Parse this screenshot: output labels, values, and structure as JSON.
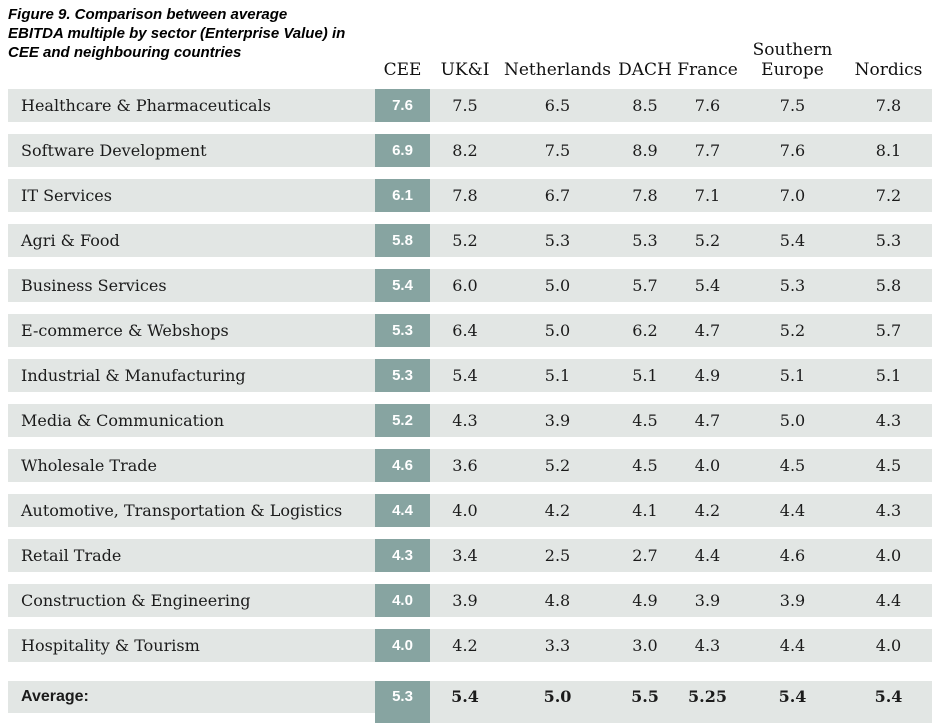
{
  "figure": {
    "caption": "Figure 9. Comparison between average EBITDA multiple by sector (Enterprise Value) in CEE and neighbouring countries"
  },
  "chart_data": {
    "type": "table",
    "title": "Comparison between average EBITDA multiple by sector (Enterprise Value) in CEE and neighbouring countries",
    "columns": [
      "CEE",
      "UK&I",
      "Netherlands",
      "DACH",
      "France",
      "Southern Europe",
      "Nordics"
    ],
    "rows": [
      {
        "sector": "Healthcare & Pharmaceuticals",
        "cee": "7.6",
        "values": [
          "7.5",
          "6.5",
          "8.5",
          "7.6",
          "7.5",
          "7.8"
        ]
      },
      {
        "sector": "Software Development",
        "cee": "6.9",
        "values": [
          "8.2",
          "7.5",
          "8.9",
          "7.7",
          "7.6",
          "8.1"
        ]
      },
      {
        "sector": "IT Services",
        "cee": "6.1",
        "values": [
          "7.8",
          "6.7",
          "7.8",
          "7.1",
          "7.0",
          "7.2"
        ]
      },
      {
        "sector": "Agri & Food",
        "cee": "5.8",
        "values": [
          "5.2",
          "5.3",
          "5.3",
          "5.2",
          "5.4",
          "5.3"
        ]
      },
      {
        "sector": "Business Services",
        "cee": "5.4",
        "values": [
          "6.0",
          "5.0",
          "5.7",
          "5.4",
          "5.3",
          "5.8"
        ]
      },
      {
        "sector": "E-commerce & Webshops",
        "cee": "5.3",
        "values": [
          "6.4",
          "5.0",
          "6.2",
          "4.7",
          "5.2",
          "5.7"
        ]
      },
      {
        "sector": "Industrial & Manufacturing",
        "cee": "5.3",
        "values": [
          "5.4",
          "5.1",
          "5.1",
          "4.9",
          "5.1",
          "5.1"
        ]
      },
      {
        "sector": "Media & Communication",
        "cee": "5.2",
        "values": [
          "4.3",
          "3.9",
          "4.5",
          "4.7",
          "5.0",
          "4.3"
        ]
      },
      {
        "sector": "Wholesale Trade",
        "cee": "4.6",
        "values": [
          "3.6",
          "5.2",
          "4.5",
          "4.0",
          "4.5",
          "4.5"
        ]
      },
      {
        "sector": "Automotive, Transportation & Logistics",
        "cee": "4.4",
        "values": [
          "4.0",
          "4.2",
          "4.1",
          "4.2",
          "4.4",
          "4.3"
        ]
      },
      {
        "sector": "Retail Trade",
        "cee": "4.3",
        "values": [
          "3.4",
          "2.5",
          "2.7",
          "4.4",
          "4.6",
          "4.0"
        ]
      },
      {
        "sector": "Construction & Engineering",
        "cee": "4.0",
        "values": [
          "3.9",
          "4.8",
          "4.9",
          "3.9",
          "3.9",
          "4.4"
        ]
      },
      {
        "sector": "Hospitality & Tourism",
        "cee": "4.0",
        "values": [
          "4.2",
          "3.3",
          "3.0",
          "4.3",
          "4.4",
          "4.0"
        ]
      }
    ],
    "average": {
      "label": "Average:",
      "cee": "5.3",
      "values": [
        "5.4",
        "5.0",
        "5.5",
        "5.25",
        "5.4",
        "5.4"
      ]
    },
    "colors": {
      "cee_highlight": "#87a4a1",
      "row_background": "#e2e6e4",
      "text": "#1b1b1b"
    },
    "layout": {
      "legend": "none",
      "grid": "off"
    }
  }
}
